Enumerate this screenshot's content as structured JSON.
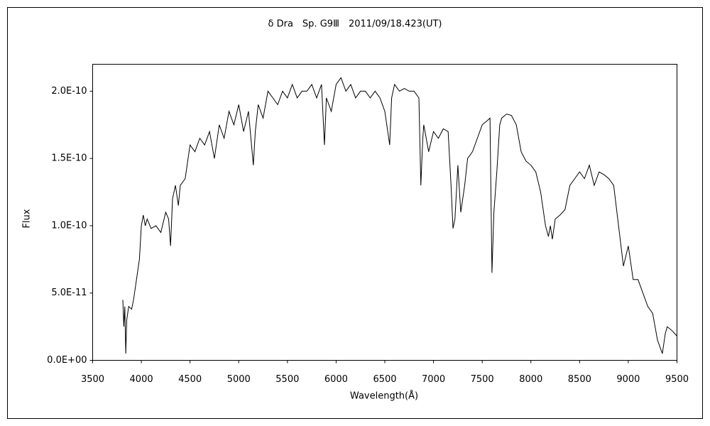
{
  "chart_data": {
    "type": "line",
    "title": "δ Dra　Sp. G9Ⅲ　2011/09/18.423(UT)",
    "x_label": "Wavelength(Å)",
    "y_label": "Flux",
    "xlim": [
      3500,
      9500
    ],
    "xticks": [
      3500,
      4000,
      4500,
      5000,
      5500,
      6000,
      6500,
      7000,
      7500,
      8000,
      8500,
      9000,
      9500
    ],
    "ylim": [
      0,
      2.2e-10
    ],
    "yticks": [
      {
        "value": 0,
        "label": "0.0E+00"
      },
      {
        "value": 5e-11,
        "label": "5.0E-11"
      },
      {
        "value": 1e-10,
        "label": "1.0E-10"
      },
      {
        "value": 1.5e-10,
        "label": "1.5E-10"
      },
      {
        "value": 2e-10,
        "label": "2.0E-10"
      }
    ],
    "grid": false,
    "series": [
      {
        "color": "#000000",
        "x": [
          3810,
          3820,
          3830,
          3840,
          3850,
          3870,
          3900,
          3920,
          3950,
          3980,
          4000,
          4020,
          4040,
          4060,
          4100,
          4150,
          4200,
          4250,
          4280,
          4300,
          4320,
          4350,
          4380,
          4400,
          4450,
          4500,
          4550,
          4600,
          4650,
          4700,
          4750,
          4800,
          4850,
          4900,
          4950,
          5000,
          5050,
          5100,
          5150,
          5170,
          5200,
          5250,
          5300,
          5350,
          5400,
          5450,
          5500,
          5550,
          5600,
          5650,
          5700,
          5750,
          5800,
          5850,
          5880,
          5900,
          5950,
          6000,
          6050,
          6100,
          6150,
          6200,
          6250,
          6300,
          6350,
          6400,
          6450,
          6500,
          6550,
          6570,
          6600,
          6650,
          6700,
          6750,
          6800,
          6850,
          6870,
          6890,
          6900,
          6950,
          7000,
          7050,
          7100,
          7150,
          7180,
          7200,
          7220,
          7250,
          7280,
          7300,
          7320,
          7350,
          7400,
          7450,
          7500,
          7550,
          7580,
          7600,
          7620,
          7650,
          7680,
          7700,
          7750,
          7800,
          7850,
          7900,
          7950,
          8000,
          8050,
          8100,
          8150,
          8180,
          8200,
          8220,
          8250,
          8300,
          8350,
          8400,
          8450,
          8500,
          8550,
          8600,
          8650,
          8700,
          8750,
          8800,
          8850,
          8900,
          8950,
          9000,
          9050,
          9100,
          9150,
          9200,
          9250,
          9300,
          9350,
          9380,
          9400,
          9450,
          9500
        ],
        "values": [
          4.5e-11,
          2.5e-11,
          4e-11,
          5e-12,
          3e-11,
          4e-11,
          3.8e-11,
          4.5e-11,
          6e-11,
          7.5e-11,
          1e-10,
          1.08e-10,
          1e-10,
          1.05e-10,
          9.8e-11,
          1e-10,
          9.5e-11,
          1.1e-10,
          1.05e-10,
          8.5e-11,
          1.2e-10,
          1.3e-10,
          1.15e-10,
          1.3e-10,
          1.35e-10,
          1.6e-10,
          1.55e-10,
          1.65e-10,
          1.6e-10,
          1.7e-10,
          1.5e-10,
          1.75e-10,
          1.65e-10,
          1.85e-10,
          1.75e-10,
          1.9e-10,
          1.7e-10,
          1.85e-10,
          1.45e-10,
          1.7e-10,
          1.9e-10,
          1.8e-10,
          2e-10,
          1.95e-10,
          1.9e-10,
          2e-10,
          1.95e-10,
          2.05e-10,
          1.95e-10,
          2e-10,
          2e-10,
          2.05e-10,
          1.95e-10,
          2.05e-10,
          1.6e-10,
          1.95e-10,
          1.85e-10,
          2.05e-10,
          2.1e-10,
          2e-10,
          2.05e-10,
          1.95e-10,
          2e-10,
          2e-10,
          1.95e-10,
          2e-10,
          1.95e-10,
          1.85e-10,
          1.6e-10,
          1.95e-10,
          2.05e-10,
          2e-10,
          2.02e-10,
          2e-10,
          2e-10,
          1.95e-10,
          1.3e-10,
          1.65e-10,
          1.75e-10,
          1.55e-10,
          1.7e-10,
          1.65e-10,
          1.72e-10,
          1.7e-10,
          1.3e-10,
          9.8e-11,
          1.05e-10,
          1.45e-10,
          1.1e-10,
          1.2e-10,
          1.3e-10,
          1.5e-10,
          1.55e-10,
          1.65e-10,
          1.75e-10,
          1.78e-10,
          1.8e-10,
          6.5e-11,
          1.1e-10,
          1.4e-10,
          1.75e-10,
          1.8e-10,
          1.83e-10,
          1.82e-10,
          1.75e-10,
          1.55e-10,
          1.48e-10,
          1.45e-10,
          1.4e-10,
          1.25e-10,
          1e-10,
          9.2e-11,
          1e-10,
          9e-11,
          1.05e-10,
          1.08e-10,
          1.12e-10,
          1.3e-10,
          1.35e-10,
          1.4e-10,
          1.35e-10,
          1.45e-10,
          1.3e-10,
          1.4e-10,
          1.38e-10,
          1.35e-10,
          1.3e-10,
          1e-10,
          7e-11,
          8.5e-11,
          6e-11,
          6e-11,
          5e-11,
          4e-11,
          3.5e-11,
          1.5e-11,
          5e-12,
          2e-11,
          2.5e-11,
          2.2e-11,
          1.8e-11
        ]
      }
    ]
  }
}
